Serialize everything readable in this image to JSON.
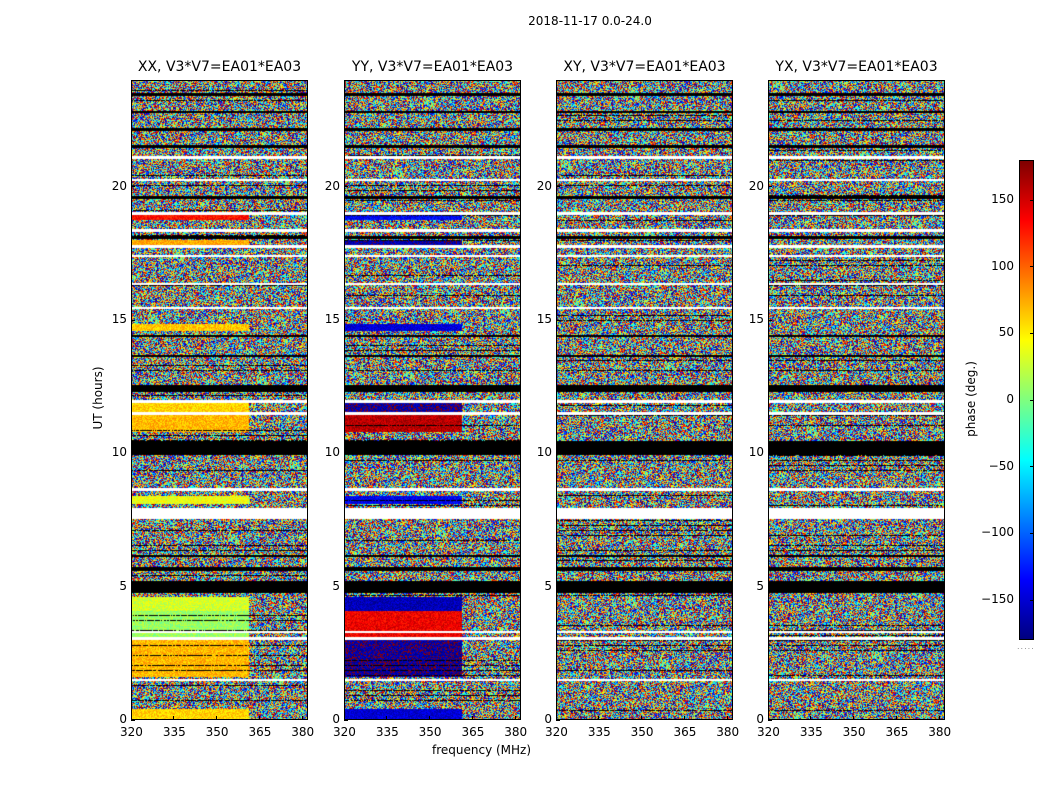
{
  "suptitle": "2018-11-17 0.0-24.0",
  "chart_data": {
    "type": "heatmap",
    "title": "2018-11-17 0.0-24.0",
    "xlabel": "frequency (MHz)",
    "ylabel": "UT (hours)",
    "xlim": [
      320,
      382
    ],
    "ylim": [
      0,
      24
    ],
    "xticks": [
      "320",
      "335",
      "350",
      "365",
      "380"
    ],
    "yticks": [
      "0",
      "5",
      "10",
      "15",
      "20"
    ],
    "panels": [
      {
        "title": "XX, V3*V7=EA01*EA03",
        "pol": "XX",
        "has_coherent_phase": true
      },
      {
        "title": "YY, V3*V7=EA01*EA03",
        "pol": "YY",
        "has_coherent_phase": true
      },
      {
        "title": "XY, V3*V7=EA01*EA03",
        "pol": "XY",
        "has_coherent_phase": false
      },
      {
        "title": "YX, V3*V7=EA01*EA03",
        "pol": "YX",
        "has_coherent_phase": false
      }
    ],
    "colorbar": {
      "label": "phase (deg.)",
      "range": [
        -180,
        180
      ],
      "ticks": [
        "150",
        "100",
        "50",
        "0",
        "−50",
        "−100",
        "−150"
      ],
      "colormap": "jet"
    },
    "flagged_time_bands_hours": [
      [
        1.45,
        1.55
      ],
      [
        3.0,
        3.1
      ],
      [
        3.25,
        3.35
      ],
      [
        7.55,
        7.95
      ],
      [
        8.6,
        8.7
      ],
      [
        11.45,
        11.55
      ],
      [
        11.9,
        12.0
      ],
      [
        15.4,
        15.5
      ],
      [
        16.3,
        16.4
      ],
      [
        17.35,
        17.45
      ],
      [
        17.7,
        17.8
      ],
      [
        18.3,
        18.4
      ],
      [
        18.95,
        19.05
      ],
      [
        20.2,
        20.3
      ],
      [
        21.05,
        21.15
      ]
    ],
    "dark_time_bands_hours": [
      [
        4.75,
        5.2
      ],
      [
        5.6,
        5.75
      ],
      [
        6.1,
        6.2
      ],
      [
        9.95,
        10.45
      ],
      [
        12.3,
        12.55
      ],
      [
        13.6,
        13.7
      ],
      [
        14.35,
        14.45
      ],
      [
        18.05,
        18.15
      ],
      [
        19.55,
        19.65
      ],
      [
        21.45,
        21.55
      ],
      [
        22.1,
        22.2
      ],
      [
        22.75,
        22.85
      ],
      [
        23.4,
        23.5
      ]
    ],
    "coherent_segments_hours": [
      {
        "t0": 0.0,
        "t1": 0.4,
        "xx_phase": 60,
        "yy_phase": -150
      },
      {
        "t0": 1.6,
        "t1": 3.0,
        "xx_phase": 70,
        "yy_phase": -170
      },
      {
        "t0": 3.0,
        "t1": 4.1,
        "xx_phase": 10,
        "yy_phase": 140
      },
      {
        "t0": 4.1,
        "t1": 4.6,
        "xx_phase": 30,
        "yy_phase": -160
      },
      {
        "t0": 8.1,
        "t1": 8.4,
        "xx_phase": 40,
        "yy_phase": -140
      },
      {
        "t0": 10.8,
        "t1": 11.5,
        "xx_phase": 70,
        "yy_phase": 160
      },
      {
        "t0": 11.55,
        "t1": 11.9,
        "xx_phase": 60,
        "yy_phase": -170
      },
      {
        "t0": 14.6,
        "t1": 14.85,
        "xx_phase": 65,
        "yy_phase": -150
      },
      {
        "t0": 17.8,
        "t1": 18.0,
        "xx_phase": 75,
        "yy_phase": -165
      },
      {
        "t0": 18.75,
        "t1": 19.0,
        "xx_phase": 130,
        "yy_phase": -135
      }
    ],
    "coherent_until_mhz": 361
  },
  "colors": {
    "flag": "#ffffff",
    "dark": "#000000",
    "frame": "#000000"
  }
}
